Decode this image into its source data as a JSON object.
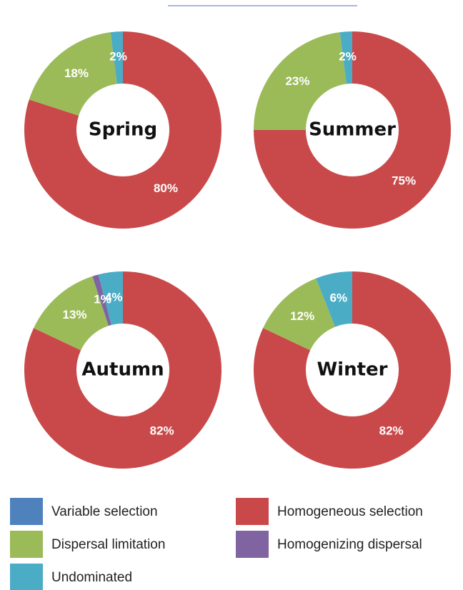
{
  "chart_data": [
    {
      "type": "pie",
      "title": "Spring",
      "values": [
        80,
        18,
        2
      ],
      "value_labels": [
        "80%",
        "18%",
        "2%"
      ],
      "colors": [
        "#c9494a",
        "#9bbb59",
        "#4bacc6"
      ]
    },
    {
      "type": "pie",
      "title": "Summer",
      "values": [
        75,
        23,
        2
      ],
      "value_labels": [
        "75%",
        "23%",
        "2%"
      ],
      "colors": [
        "#c9494a",
        "#9bbb59",
        "#4bacc6"
      ]
    },
    {
      "type": "pie",
      "title": "Autumn",
      "values": [
        82,
        13,
        1,
        4
      ],
      "value_labels": [
        "82%",
        "13%",
        "1%",
        "4%"
      ],
      "colors": [
        "#c9494a",
        "#9bbb59",
        "#8064a2",
        "#4bacc6"
      ]
    },
    {
      "type": "pie",
      "title": "Winter",
      "values": [
        82,
        12,
        6
      ],
      "value_labels": [
        "82%",
        "12%",
        "6%"
      ],
      "colors": [
        "#c9494a",
        "#9bbb59",
        "#4bacc6"
      ]
    }
  ],
  "legend": [
    {
      "name": "Variable selection",
      "color": "#4f81bd"
    },
    {
      "name": "Homogeneous selection",
      "color": "#c9494a"
    },
    {
      "name": "Dispersal limitation",
      "color": "#9bbb59"
    },
    {
      "name": "Homogenizing dispersal",
      "color": "#8064a2"
    },
    {
      "name": "Undominated",
      "color": "#4bacc6"
    }
  ]
}
